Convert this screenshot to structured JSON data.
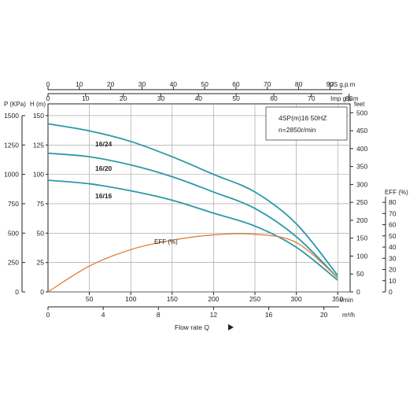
{
  "chart_data": {
    "type": "line",
    "title": "4SP(m)16  50HZ",
    "subtitle": "n=2850r/min",
    "xlabel": "Flow rate Q",
    "x_unit": "l/min",
    "xlim": [
      0,
      365
    ],
    "x_ticks": [
      50,
      100,
      150,
      200,
      250,
      300,
      350
    ],
    "ylabel": "H (m)",
    "ylim": [
      0,
      160
    ],
    "y_ticks": [
      0,
      25,
      50,
      75,
      100,
      125,
      150
    ],
    "grid": true,
    "series": [
      {
        "name": "16/24",
        "x": [
          0,
          50,
          100,
          150,
          200,
          250,
          300,
          350
        ],
        "y": [
          143,
          137,
          128,
          115,
          100,
          85,
          58,
          14
        ]
      },
      {
        "name": "16/20",
        "x": [
          0,
          50,
          100,
          150,
          200,
          250,
          300,
          350
        ],
        "y": [
          118,
          115,
          108,
          98,
          85,
          71,
          47,
          12
        ]
      },
      {
        "name": "16/16",
        "x": [
          0,
          50,
          100,
          150,
          200,
          250,
          300,
          350
        ],
        "y": [
          95,
          92,
          86,
          78,
          67,
          56,
          38,
          10
        ]
      },
      {
        "name": "EFF (%)",
        "x": [
          0,
          50,
          100,
          150,
          200,
          250,
          300,
          350
        ],
        "y": [
          0,
          22,
          36,
          44,
          48.5,
          49,
          42,
          12
        ]
      }
    ],
    "axes": {
      "top_us": {
        "label": "US g.p.m",
        "ticks": [
          0,
          10,
          20,
          30,
          40,
          50,
          60,
          70,
          80,
          90
        ],
        "per_lpm": 0.264172
      },
      "top_imp": {
        "label": "Imp g.p.m",
        "ticks": [
          0,
          10,
          20,
          30,
          40,
          50,
          60,
          70,
          80
        ],
        "per_lpm": 0.219969
      },
      "bottom_m3h": {
        "label": "m³/h",
        "ticks": [
          0,
          4,
          8,
          12,
          16,
          20
        ],
        "per_lpm": 0.06
      },
      "left_kpa": {
        "label": "P (KPa)",
        "ticks": [
          0,
          250,
          500,
          750,
          1000,
          1250,
          1500
        ],
        "per_m": 10
      },
      "right_feet": {
        "label": "feet",
        "ticks": [
          0,
          50,
          100,
          150,
          200,
          250,
          300,
          350,
          400,
          450,
          500
        ],
        "per_m": 3.28084
      },
      "eff": {
        "label": "EFF (%)",
        "ticks": [
          0,
          10,
          20,
          30,
          40,
          50,
          60,
          70,
          80
        ]
      }
    },
    "colors": {
      "head": "#2a9aa6",
      "eff": "#e0803a",
      "arrow": "#222222"
    }
  }
}
